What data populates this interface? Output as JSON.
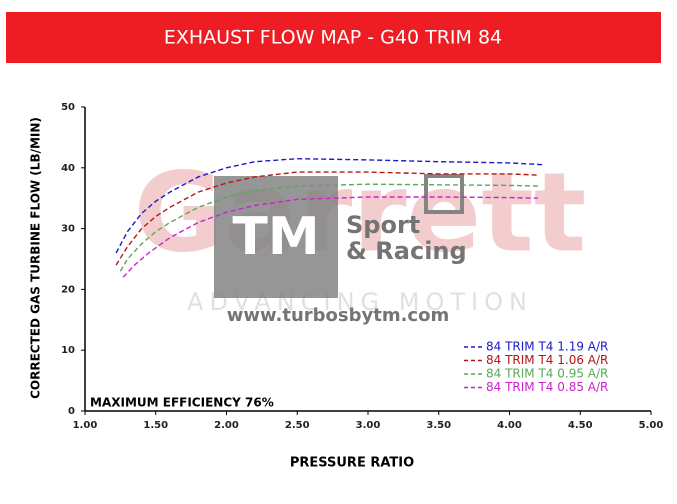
{
  "chart_data": {
    "type": "line",
    "title": "EXHAUST FLOW MAP  -  G40 TRIM 84",
    "x_label": "PRESSURE RATIO",
    "y_label": "CORRECTED GAS TURBINE FLOW (LB/MIN)",
    "annotation": "MAXIMUM EFFICIENCY 76%",
    "watermarks": [
      "Garrett",
      "ADVANCING MOTION",
      "TM",
      "Sport",
      "& Racing",
      "www.turbosbytm.com"
    ],
    "xlim": [
      1,
      5
    ],
    "ylim": [
      0,
      50
    ],
    "xticks": [
      {
        "value": 1,
        "label": "1.00"
      },
      {
        "value": 1.5,
        "label": "1.50"
      },
      {
        "value": 2,
        "label": "2.00"
      },
      {
        "value": 2.5,
        "label": "2.50"
      },
      {
        "value": 3,
        "label": "3.00"
      },
      {
        "value": 3.5,
        "label": "3.50"
      },
      {
        "value": 4,
        "label": "4.00"
      },
      {
        "value": 4.5,
        "label": "4.50"
      },
      {
        "value": 5,
        "label": "5.00"
      }
    ],
    "yticks": [
      0,
      10,
      20,
      30,
      40,
      50
    ],
    "grid": false,
    "legend": "lower right",
    "series": [
      {
        "name": "84 TRIM T4 1.19 A/R",
        "color": "#1a1ac8",
        "x": [
          1.22,
          1.3,
          1.4,
          1.5,
          1.6,
          1.8,
          2.0,
          2.2,
          2.5,
          3.0,
          3.5,
          4.0,
          4.25
        ],
        "values": [
          26,
          29.5,
          32.5,
          34.5,
          36,
          38.5,
          40,
          41,
          41.5,
          41.3,
          41,
          40.8,
          40.5
        ]
      },
      {
        "name": "84 TRIM T4 1.06 A/R",
        "color": "#b01818",
        "x": [
          1.22,
          1.3,
          1.4,
          1.5,
          1.6,
          1.8,
          2.0,
          2.2,
          2.5,
          3.0,
          3.5,
          4.0,
          4.2
        ],
        "values": [
          24,
          27,
          30,
          32,
          33.5,
          36,
          37.5,
          38.5,
          39.3,
          39.3,
          39,
          39,
          38.8
        ]
      },
      {
        "name": "84 TRIM T4 0.95 A/R",
        "color": "#5aa85a",
        "x": [
          1.25,
          1.3,
          1.4,
          1.5,
          1.6,
          1.8,
          2.0,
          2.2,
          2.5,
          3.0,
          3.5,
          4.0,
          4.2
        ],
        "values": [
          23,
          25,
          27.5,
          29.5,
          31,
          33.5,
          35.2,
          36.2,
          37,
          37.3,
          37.2,
          37.1,
          37
        ]
      },
      {
        "name": "84 TRIM T4 0.85 A/R",
        "color": "#cc22cc",
        "x": [
          1.27,
          1.35,
          1.45,
          1.6,
          1.8,
          2.0,
          2.2,
          2.5,
          3.0,
          3.5,
          4.0,
          4.2
        ],
        "values": [
          22,
          24,
          26,
          28.5,
          31,
          32.7,
          33.8,
          34.8,
          35.2,
          35.2,
          35.1,
          35
        ]
      }
    ]
  }
}
